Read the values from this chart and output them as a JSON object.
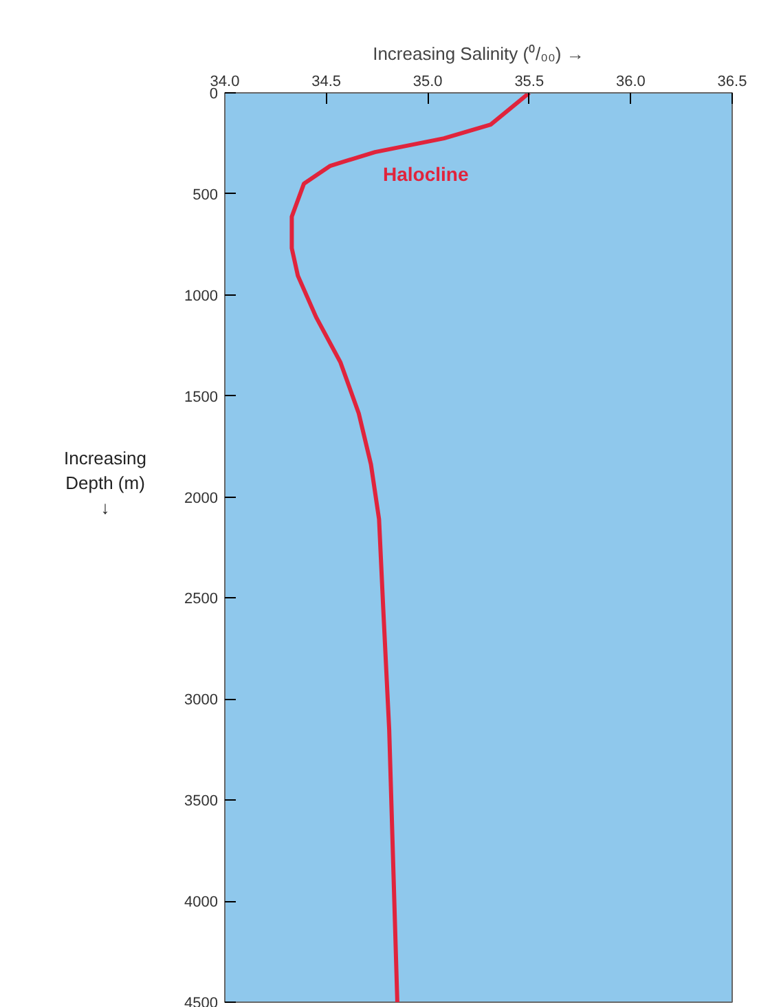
{
  "chart_data": {
    "type": "line",
    "xlabel": "Increasing Salinity (⁰/₀₀) →",
    "ylabel": "Increasing Depth (m) ↓",
    "x": [
      35.5,
      35.31,
      35.08,
      34.74,
      34.52,
      34.39,
      34.33,
      34.33,
      34.36,
      34.45,
      34.57,
      34.66,
      34.72,
      34.76,
      34.78,
      34.81,
      34.85
    ],
    "series": [
      {
        "color": "#e0243c",
        "values": [
          0,
          157,
          225,
          293,
          361,
          449,
          613,
          769,
          905,
          1110,
          1334,
          1586,
          1838,
          2110,
          2539,
          3152,
          4500
        ]
      }
    ],
    "xlim": [
      34.0,
      36.5
    ],
    "xticks": [
      {
        "value": 34.0,
        "label": "34.0"
      },
      34.5,
      {
        "value": 35.0,
        "label": "35.0"
      },
      35.5,
      {
        "value": 36.0,
        "label": "36.0"
      },
      36.5
    ],
    "ylim": [
      4500,
      0
    ],
    "yticks": [
      0,
      500,
      1000,
      1500,
      2000,
      2500,
      3000,
      3500,
      4000,
      4500
    ],
    "annotations": [
      "Halocline"
    ],
    "grid": false,
    "marker": "none",
    "line_style": "solid"
  }
}
